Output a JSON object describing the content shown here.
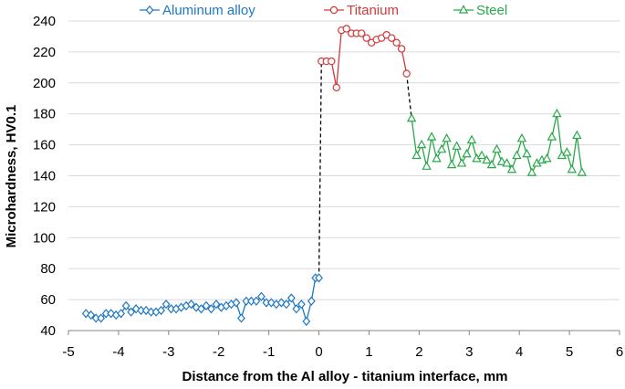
{
  "chart_data": {
    "type": "line",
    "title": "",
    "xlabel": "Distance from the Al alloy - titanium interface, mm",
    "ylabel": "Microhardness, HV0.1",
    "xlim": [
      -5,
      6
    ],
    "ylim": [
      40,
      240
    ],
    "xticks": [
      "-5",
      "-4",
      "-3",
      "-2",
      "-1",
      "0",
      "1",
      "2",
      "3",
      "4",
      "5",
      "6"
    ],
    "yticks": [
      "40",
      "60",
      "80",
      "100",
      "120",
      "140",
      "160",
      "180",
      "200",
      "220",
      "240"
    ],
    "grid": "horizontal",
    "legend_position": "top",
    "series": [
      {
        "name": "Aluminum alloy",
        "color": "#1f77c4",
        "marker": "diamond",
        "x": [
          -4.65,
          -4.55,
          -4.45,
          -4.35,
          -4.25,
          -4.15,
          -4.05,
          -3.95,
          -3.85,
          -3.75,
          -3.65,
          -3.55,
          -3.45,
          -3.35,
          -3.25,
          -3.15,
          -3.05,
          -2.95,
          -2.85,
          -2.75,
          -2.65,
          -2.55,
          -2.45,
          -2.35,
          -2.25,
          -2.15,
          -2.05,
          -1.95,
          -1.85,
          -1.75,
          -1.65,
          -1.55,
          -1.45,
          -1.35,
          -1.25,
          -1.15,
          -1.05,
          -0.95,
          -0.85,
          -0.75,
          -0.65,
          -0.55,
          -0.45,
          -0.35,
          -0.25,
          -0.15,
          -0.07,
          0.0
        ],
        "values": [
          51,
          50,
          48,
          48,
          51,
          51,
          50,
          51,
          56,
          52,
          54,
          53,
          53,
          52,
          52,
          53,
          57,
          54,
          54,
          55,
          56,
          57,
          55,
          54,
          56,
          54,
          57,
          55,
          56,
          57,
          58,
          48,
          59,
          59,
          59,
          62,
          58,
          58,
          57,
          58,
          57,
          61,
          54,
          57,
          46,
          59,
          74,
          74
        ]
      },
      {
        "name": "Titanium",
        "color": "#d2393b",
        "marker": "circle",
        "x": [
          0.05,
          0.15,
          0.25,
          0.35,
          0.45,
          0.55,
          0.65,
          0.75,
          0.85,
          0.95,
          1.05,
          1.15,
          1.25,
          1.35,
          1.45,
          1.55,
          1.65,
          1.75
        ],
        "values": [
          214,
          214,
          214,
          197,
          234,
          235,
          232,
          232,
          232,
          229,
          226,
          228,
          229,
          231,
          229,
          226,
          222,
          206
        ]
      },
      {
        "name": "Steel",
        "color": "#29a84a",
        "marker": "triangle",
        "x": [
          1.85,
          1.95,
          2.05,
          2.15,
          2.25,
          2.35,
          2.45,
          2.55,
          2.65,
          2.75,
          2.85,
          2.95,
          3.05,
          3.15,
          3.25,
          3.35,
          3.45,
          3.55,
          3.65,
          3.75,
          3.85,
          3.95,
          4.05,
          4.15,
          4.25,
          4.35,
          4.45,
          4.55,
          4.65,
          4.75,
          4.85,
          4.95,
          5.05,
          5.15,
          5.25
        ],
        "values": [
          177,
          153,
          160,
          146,
          165,
          151,
          157,
          164,
          147,
          159,
          148,
          154,
          163,
          151,
          153,
          150,
          147,
          157,
          149,
          148,
          144,
          153,
          164,
          154,
          142,
          148,
          150,
          151,
          165,
          180,
          153,
          155,
          144,
          166,
          142
        ]
      }
    ],
    "connectors": [
      {
        "color": "#000000",
        "style": "dashed",
        "from_series": "Aluminum alloy",
        "to_series": "Titanium"
      },
      {
        "color": "#000000",
        "style": "dashed",
        "from_series": "Titanium",
        "to_series": "Steel"
      }
    ]
  }
}
